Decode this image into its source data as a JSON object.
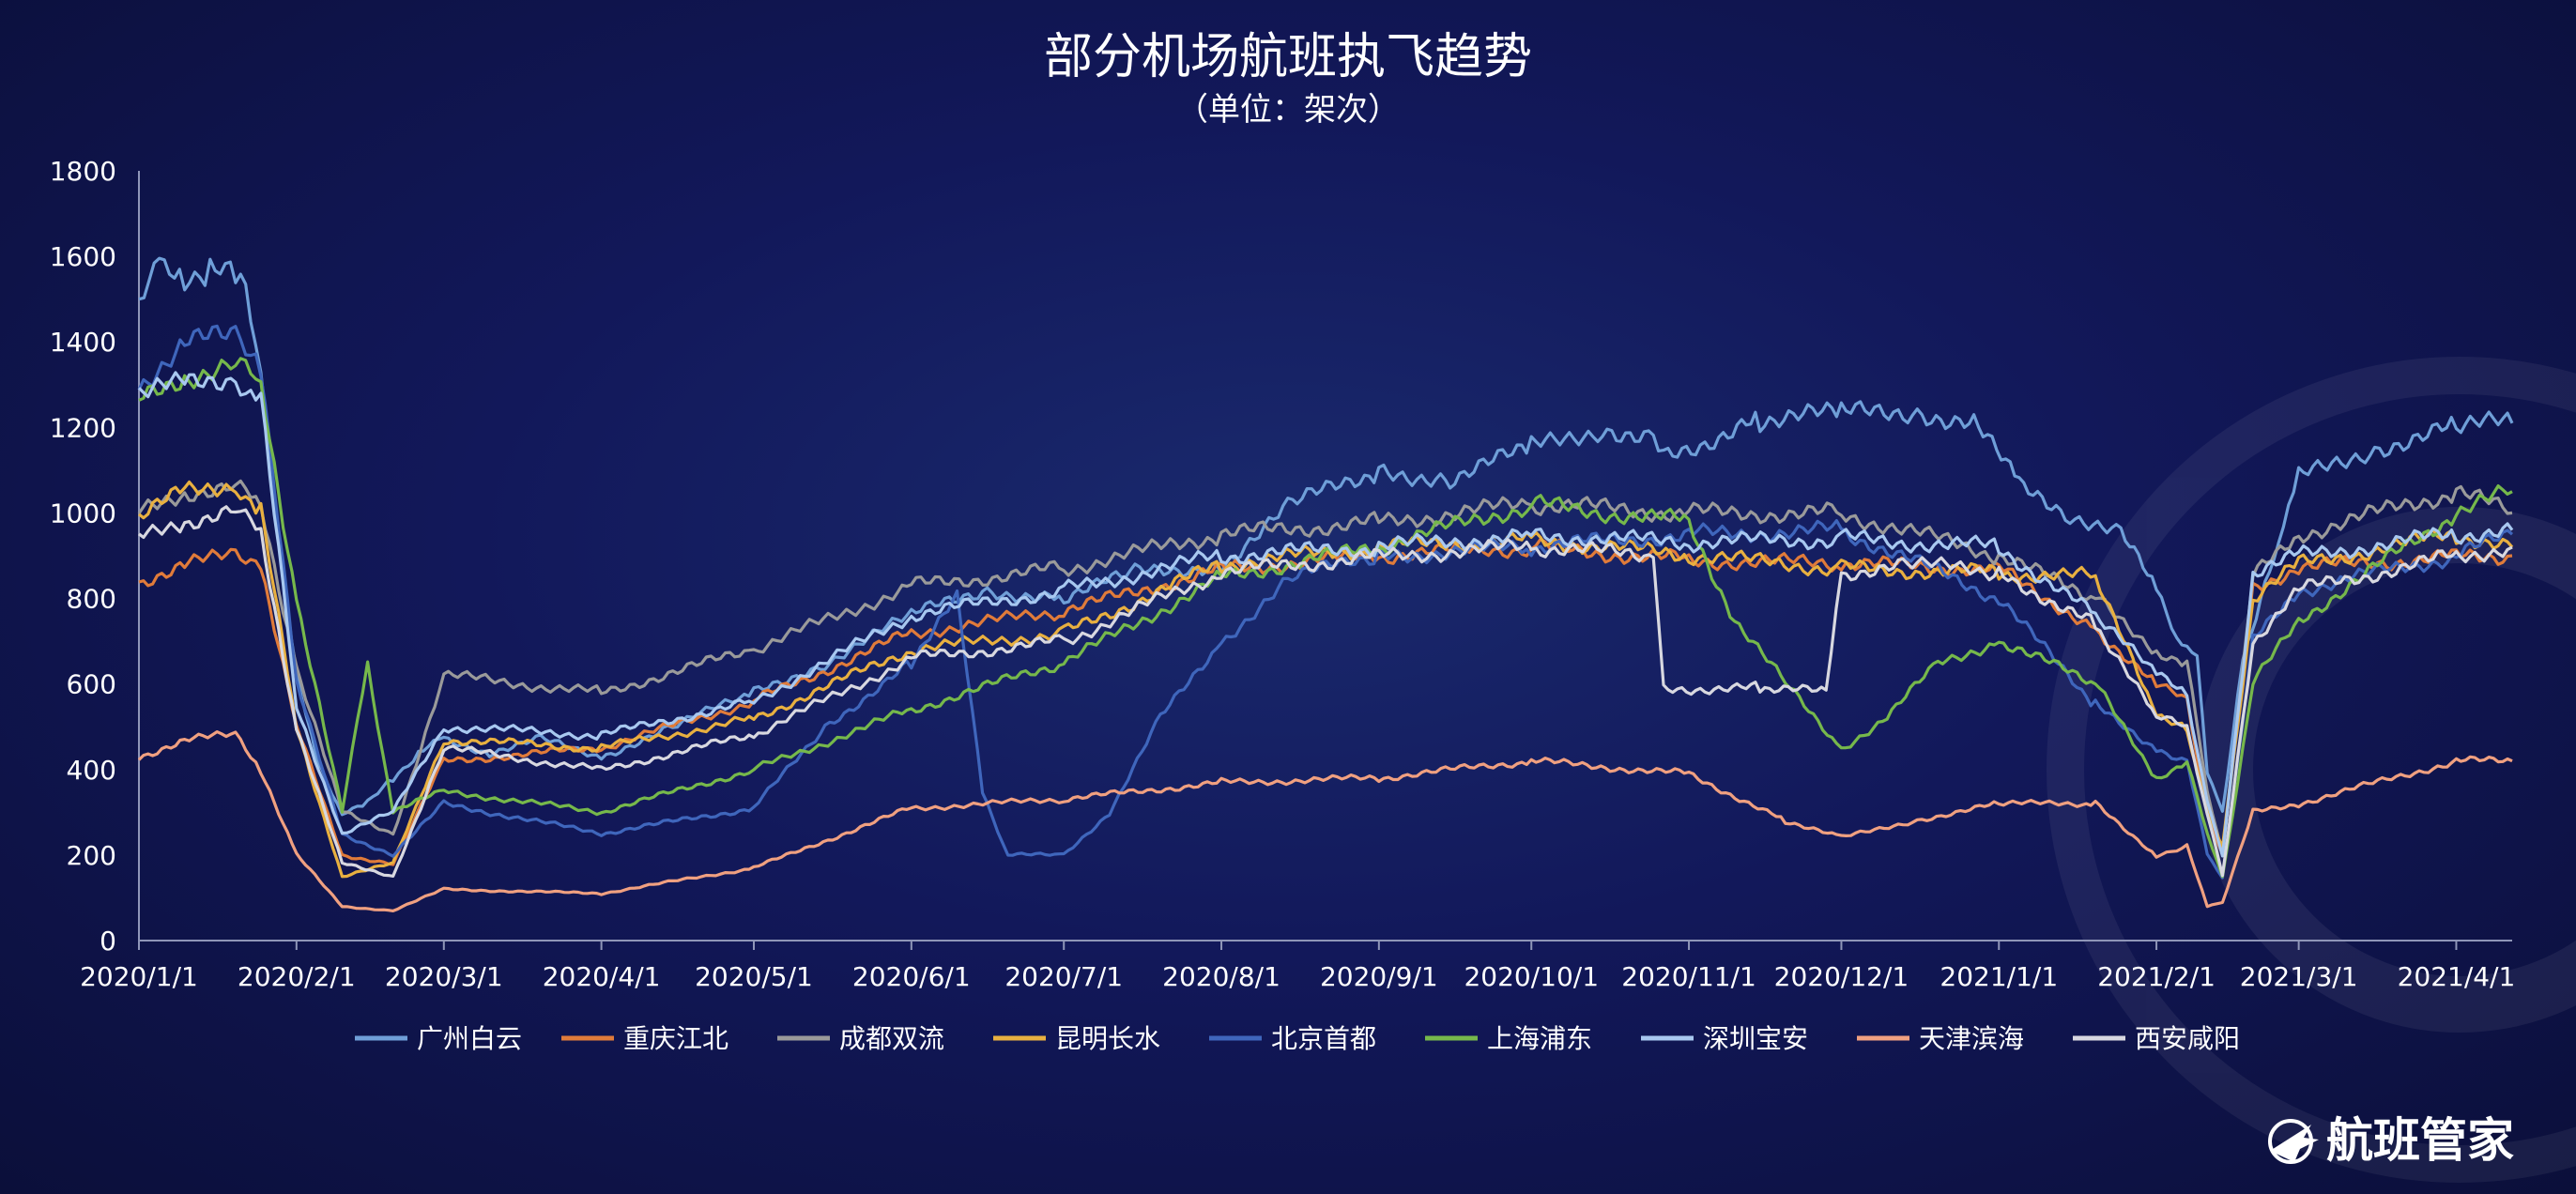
{
  "chart_data": {
    "type": "line",
    "title": "部分机场航班执飞趋势",
    "subtitle": "（单位：架次）",
    "xlabel": "",
    "ylabel": "",
    "ylim": [
      0,
      1800
    ],
    "y_ticks": [
      0,
      200,
      400,
      600,
      800,
      1000,
      1200,
      1400,
      1600,
      1800
    ],
    "x_range": [
      "2020-01-01",
      "2021-04-12"
    ],
    "x_ticks": [
      {
        "date": "2020-01-01",
        "label": "2020/1/1"
      },
      {
        "date": "2020-02-01",
        "label": "2020/2/1"
      },
      {
        "date": "2020-03-01",
        "label": "2020/3/1"
      },
      {
        "date": "2020-04-01",
        "label": "2020/4/1"
      },
      {
        "date": "2020-05-01",
        "label": "2020/5/1"
      },
      {
        "date": "2020-06-01",
        "label": "2020/6/1"
      },
      {
        "date": "2020-07-01",
        "label": "2020/7/1"
      },
      {
        "date": "2020-08-01",
        "label": "2020/8/1"
      },
      {
        "date": "2020-09-01",
        "label": "2020/9/1"
      },
      {
        "date": "2020-10-01",
        "label": "2020/10/1"
      },
      {
        "date": "2020-11-01",
        "label": "2020/11/1"
      },
      {
        "date": "2020-12-01",
        "label": "2020/12/1"
      },
      {
        "date": "2021-01-01",
        "label": "2021/1/1"
      },
      {
        "date": "2021-02-01",
        "label": "2021/2/1"
      },
      {
        "date": "2021-03-01",
        "label": "2021/3/1"
      },
      {
        "date": "2021-04-01",
        "label": "2021/4/1"
      }
    ],
    "grid": false,
    "legend_position": "bottom",
    "series": [
      {
        "name": "广州白云",
        "color": "#6f9fd8",
        "x": [
          "2020-01-01",
          "2020-01-05",
          "2020-01-10",
          "2020-01-15",
          "2020-01-20",
          "2020-01-22",
          "2020-01-25",
          "2020-01-28",
          "2020-02-01",
          "2020-02-05",
          "2020-02-10",
          "2020-02-15",
          "2020-02-20",
          "2020-02-25",
          "2020-03-01",
          "2020-03-10",
          "2020-03-20",
          "2020-04-01",
          "2020-04-15",
          "2020-05-01",
          "2020-05-15",
          "2020-06-01",
          "2020-06-15",
          "2020-07-01",
          "2020-07-15",
          "2020-08-01",
          "2020-08-15",
          "2020-09-01",
          "2020-09-15",
          "2020-10-01",
          "2020-10-15",
          "2020-10-25",
          "2020-10-27",
          "2020-11-15",
          "2020-12-01",
          "2020-12-15",
          "2020-12-28",
          "2021-01-05",
          "2021-01-15",
          "2021-01-25",
          "2021-02-01",
          "2021-02-05",
          "2021-02-09",
          "2021-02-11",
          "2021-02-14",
          "2021-02-18",
          "2021-02-25",
          "2021-03-01",
          "2021-03-15",
          "2021-04-01",
          "2021-04-12"
        ],
        "y": [
          1500,
          1570,
          1560,
          1560,
          1550,
          1550,
          1300,
          1000,
          620,
          420,
          300,
          320,
          380,
          440,
          470,
          440,
          470,
          430,
          500,
          580,
          650,
          760,
          820,
          800,
          860,
          880,
          1020,
          1100,
          1080,
          1150,
          1200,
          1180,
          1130,
          1220,
          1230,
          1240,
          1210,
          1060,
          1000,
          950,
          820,
          720,
          650,
          400,
          300,
          650,
          950,
          1080,
          1150,
          1200,
          1210
        ]
      },
      {
        "name": "重庆江北",
        "color": "#e07b3a",
        "x": [
          "2020-01-01",
          "2020-01-10",
          "2020-01-20",
          "2020-01-25",
          "2020-02-01",
          "2020-02-10",
          "2020-02-20",
          "2020-03-01",
          "2020-04-01",
          "2020-05-01",
          "2020-06-01",
          "2020-07-01",
          "2020-08-01",
          "2020-09-01",
          "2020-10-01",
          "2020-11-01",
          "2020-12-01",
          "2021-01-01",
          "2021-01-20",
          "2021-02-01",
          "2021-02-07",
          "2021-02-11",
          "2021-02-14",
          "2021-02-20",
          "2021-03-01",
          "2021-04-01",
          "2021-04-12"
        ],
        "y": [
          840,
          880,
          900,
          880,
          500,
          200,
          180,
          420,
          450,
          560,
          720,
          770,
          870,
          900,
          920,
          890,
          880,
          870,
          730,
          600,
          560,
          300,
          200,
          830,
          870,
          900,
          900
        ]
      },
      {
        "name": "成都双流",
        "color": "#9a9a9a",
        "x": [
          "2020-01-01",
          "2020-01-10",
          "2020-01-20",
          "2020-01-25",
          "2020-02-01",
          "2020-02-10",
          "2020-02-20",
          "2020-03-01",
          "2020-04-01",
          "2020-05-01",
          "2020-06-01",
          "2020-07-01",
          "2020-08-01",
          "2020-09-01",
          "2020-10-01",
          "2020-11-01",
          "2020-12-01",
          "2021-01-01",
          "2021-01-20",
          "2021-02-01",
          "2021-02-07",
          "2021-02-11",
          "2021-02-14",
          "2021-02-20",
          "2021-03-01",
          "2021-04-01",
          "2021-04-12"
        ],
        "y": [
          1000,
          1050,
          1060,
          1020,
          640,
          300,
          250,
          620,
          580,
          680,
          830,
          870,
          950,
          980,
          1020,
          1000,
          1000,
          900,
          800,
          680,
          650,
          350,
          200,
          850,
          950,
          1050,
          1000
        ]
      },
      {
        "name": "昆明长水",
        "color": "#e8b040",
        "x": [
          "2020-01-01",
          "2020-01-10",
          "2020-01-20",
          "2020-01-25",
          "2020-02-01",
          "2020-02-10",
          "2020-02-20",
          "2020-03-01",
          "2020-04-01",
          "2020-05-01",
          "2020-06-01",
          "2020-07-01",
          "2020-08-01",
          "2020-09-01",
          "2020-10-01",
          "2020-11-01",
          "2020-12-01",
          "2021-01-01",
          "2021-01-20",
          "2021-02-01",
          "2021-02-07",
          "2021-02-11",
          "2021-02-14",
          "2021-02-20",
          "2021-03-01",
          "2021-04-01",
          "2021-04-12"
        ],
        "y": [
          990,
          1050,
          1070,
          1000,
          500,
          150,
          180,
          470,
          450,
          520,
          680,
          720,
          880,
          920,
          940,
          900,
          870,
          860,
          850,
          520,
          500,
          300,
          220,
          800,
          880,
          950,
          920
        ]
      },
      {
        "name": "北京首都",
        "color": "#3f66bc",
        "x": [
          "2020-01-01",
          "2020-01-10",
          "2020-01-20",
          "2020-01-25",
          "2020-02-01",
          "2020-02-10",
          "2020-02-20",
          "2020-03-01",
          "2020-04-01",
          "2020-05-01",
          "2020-05-15",
          "2020-06-01",
          "2020-06-10",
          "2020-06-15",
          "2020-06-20",
          "2020-07-01",
          "2020-07-10",
          "2020-07-20",
          "2020-08-01",
          "2020-08-15",
          "2020-09-01",
          "2020-10-01",
          "2020-11-01",
          "2020-12-01",
          "2021-01-01",
          "2021-01-20",
          "2021-02-01",
          "2021-02-07",
          "2021-02-11",
          "2021-02-14",
          "2021-02-20",
          "2021-03-01",
          "2021-04-01",
          "2021-04-12"
        ],
        "y": [
          1300,
          1400,
          1410,
          1350,
          600,
          250,
          200,
          320,
          250,
          310,
          500,
          650,
          800,
          350,
          200,
          200,
          300,
          520,
          700,
          850,
          900,
          920,
          950,
          960,
          800,
          550,
          450,
          420,
          200,
          150,
          700,
          820,
          900,
          950
        ]
      },
      {
        "name": "上海浦东",
        "color": "#76b84b",
        "x": [
          "2020-01-01",
          "2020-01-10",
          "2020-01-20",
          "2020-01-25",
          "2020-02-01",
          "2020-02-10",
          "2020-02-15",
          "2020-02-20",
          "2020-03-01",
          "2020-04-01",
          "2020-05-01",
          "2020-06-01",
          "2020-07-01",
          "2020-08-01",
          "2020-09-01",
          "2020-10-01",
          "2020-11-01",
          "2020-11-10",
          "2020-11-20",
          "2020-12-01",
          "2020-12-10",
          "2020-12-20",
          "2021-01-01",
          "2021-01-20",
          "2021-02-01",
          "2021-02-07",
          "2021-02-11",
          "2021-02-14",
          "2021-02-20",
          "2021-03-01",
          "2021-04-01",
          "2021-04-12"
        ],
        "y": [
          1260,
          1320,
          1350,
          1300,
          800,
          300,
          650,
          300,
          350,
          300,
          400,
          540,
          650,
          850,
          920,
          1020,
          980,
          750,
          600,
          450,
          520,
          650,
          700,
          600,
          380,
          420,
          250,
          150,
          600,
          750,
          1000,
          1050
        ]
      },
      {
        "name": "深圳宝安",
        "color": "#a8c8f0",
        "x": [
          "2020-01-01",
          "2020-01-10",
          "2020-01-20",
          "2020-01-25",
          "2020-02-01",
          "2020-02-10",
          "2020-02-20",
          "2020-03-01",
          "2020-04-01",
          "2020-05-01",
          "2020-06-01",
          "2020-07-01",
          "2020-08-01",
          "2020-09-01",
          "2020-10-01",
          "2020-11-01",
          "2020-12-01",
          "2021-01-01",
          "2021-01-20",
          "2021-02-01",
          "2021-02-07",
          "2021-02-11",
          "2021-02-14",
          "2021-02-20",
          "2021-03-01",
          "2021-04-01",
          "2021-04-12"
        ],
        "y": [
          1280,
          1300,
          1320,
          1260,
          550,
          250,
          300,
          500,
          480,
          560,
          760,
          820,
          900,
          920,
          950,
          930,
          940,
          920,
          760,
          620,
          580,
          320,
          200,
          860,
          900,
          950,
          960
        ]
      },
      {
        "name": "天津滨海",
        "color": "#f0a080",
        "x": [
          "2020-01-01",
          "2020-01-10",
          "2020-01-20",
          "2020-01-25",
          "2020-02-01",
          "2020-02-10",
          "2020-02-20",
          "2020-03-01",
          "2020-04-01",
          "2020-05-01",
          "2020-06-01",
          "2020-07-01",
          "2020-08-01",
          "2020-09-01",
          "2020-10-01",
          "2020-11-01",
          "2020-11-20",
          "2020-12-01",
          "2020-12-15",
          "2021-01-01",
          "2021-01-20",
          "2021-02-01",
          "2021-02-07",
          "2021-02-11",
          "2021-02-14",
          "2021-02-20",
          "2021-03-01",
          "2021-04-01",
          "2021-04-12"
        ],
        "y": [
          430,
          470,
          480,
          400,
          200,
          80,
          70,
          120,
          110,
          170,
          310,
          330,
          370,
          380,
          420,
          390,
          280,
          240,
          280,
          320,
          320,
          200,
          220,
          80,
          90,
          300,
          320,
          420,
          420
        ]
      },
      {
        "name": "西安咸阳",
        "color": "#d8d8e0",
        "x": [
          "2020-01-01",
          "2020-01-10",
          "2020-01-20",
          "2020-01-25",
          "2020-02-01",
          "2020-02-10",
          "2020-02-20",
          "2020-03-01",
          "2020-04-01",
          "2020-05-01",
          "2020-06-01",
          "2020-07-01",
          "2020-08-01",
          "2020-09-01",
          "2020-10-01",
          "2020-10-25",
          "2020-10-27",
          "2020-11-15",
          "2020-11-28",
          "2020-12-01",
          "2020-12-15",
          "2021-01-01",
          "2021-01-20",
          "2021-02-01",
          "2021-02-07",
          "2021-02-11",
          "2021-02-14",
          "2021-02-20",
          "2021-03-01",
          "2021-04-01",
          "2021-04-12"
        ],
        "y": [
          940,
          980,
          1010,
          950,
          500,
          180,
          150,
          450,
          400,
          480,
          660,
          700,
          860,
          900,
          920,
          900,
          590,
          590,
          580,
          860,
          880,
          860,
          740,
          520,
          500,
          300,
          150,
          700,
          820,
          900,
          920
        ]
      }
    ]
  },
  "logo": {
    "text": "航班管家"
  }
}
